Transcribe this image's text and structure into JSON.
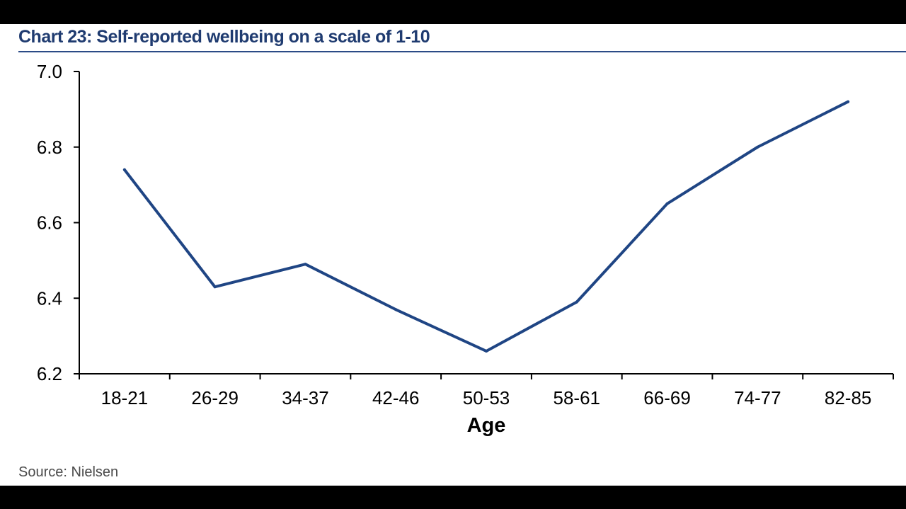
{
  "title": "Chart 23: Self-reported wellbeing on a scale of 1-10",
  "source": "Source: Nielsen",
  "colors": {
    "line": "#1f4584",
    "title": "#1f3b70",
    "axis": "#000000"
  },
  "chart_data": {
    "type": "line",
    "title": "Chart 23: Self-reported wellbeing on a scale of 1-10",
    "xlabel": "Age",
    "ylabel": "",
    "categories": [
      "18-21",
      "26-29",
      "34-37",
      "42-46",
      "50-53",
      "58-61",
      "66-69",
      "74-77",
      "82-85"
    ],
    "series": [
      {
        "values": [
          6.74,
          6.43,
          6.49,
          6.37,
          6.26,
          6.39,
          6.65,
          6.8,
          6.92
        ]
      }
    ],
    "ylim": [
      6.2,
      7.0
    ],
    "yticks": [
      "6.2",
      "6.4",
      "6.6",
      "6.8",
      "7.0"
    ],
    "grid": false,
    "legend": "none"
  }
}
